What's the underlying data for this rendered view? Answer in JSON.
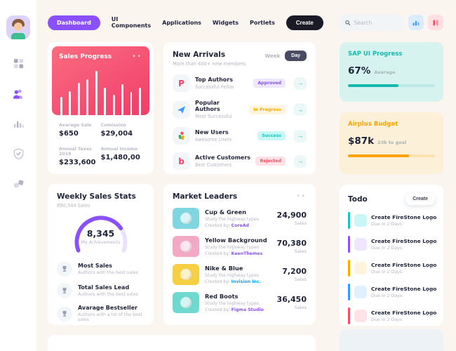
{
  "colors": {
    "purple": "#8950fc",
    "teal": "#1bc5bd",
    "orange": "#ffa800",
    "blue": "#3699ff",
    "red": "#f64e60",
    "dark": "#1b1b28",
    "page_bg": "#faf5ee",
    "sales_gradient_top": "#fb6c80",
    "sales_gradient_bottom": "#f1416c"
  },
  "sidebar": {
    "items": [
      {
        "icon": "user-avatar",
        "active": false
      },
      {
        "icon": "grid-icon",
        "active": false
      },
      {
        "icon": "users-icon",
        "active": true
      },
      {
        "icon": "bar-chart-icon",
        "active": false
      },
      {
        "icon": "shield-check-icon",
        "active": false
      },
      {
        "icon": "puzzle-icon",
        "active": false
      }
    ]
  },
  "nav": {
    "items": [
      "Dashboard",
      "UI Components",
      "Applications",
      "Widgets",
      "Portlets"
    ],
    "active": "Dashboard",
    "create_label": "Create"
  },
  "search": {
    "placeholder": "Search",
    "icons": [
      "search-icon",
      "chart-icon",
      "pause-icon"
    ]
  },
  "sales_progress": {
    "title": "Sales Progress",
    "bars": [
      38,
      50,
      68,
      75,
      92,
      58,
      42,
      64,
      48,
      58
    ],
    "stats": [
      {
        "label": "Avarage Sale",
        "value": "$650"
      },
      {
        "label": "Comission",
        "value": "$29,004"
      },
      {
        "label": "Annual Taxes 2019",
        "value": "$233,600"
      },
      {
        "label": "Annual Income",
        "value": "$1,480,00"
      }
    ]
  },
  "new_arrivals": {
    "title": "New Arrivals",
    "subtitle": "More than 400+ new members",
    "toggle": {
      "week": "Week",
      "day": "Day",
      "active": "Day"
    },
    "items": [
      {
        "icon": "p-logo-icon",
        "glyph": "P",
        "glyph_color": "#f1416c",
        "title": "Top Authors",
        "subtitle": "Successful Fellas",
        "badge": "Approved",
        "badge_bg": "#eee5ff",
        "badge_fg": "#8950fc"
      },
      {
        "icon": "paper-plane-icon",
        "glyph": "",
        "glyph_color": "#3699ff",
        "title": "Popular Authors",
        "subtitle": "Most Successful",
        "badge": "In Progress",
        "badge_bg": "#fff4de",
        "badge_fg": "#ffa800"
      },
      {
        "icon": "person-figure-icon",
        "glyph": "",
        "glyph_color": "#f64e60",
        "title": "New Users",
        "subtitle": "Awesome Users",
        "badge": "Success",
        "badge_bg": "#c9f7f5",
        "badge_fg": "#1bc5bd"
      },
      {
        "icon": "b-logo-icon",
        "glyph": "b",
        "glyph_color": "#f1416c",
        "title": "Active Customers",
        "subtitle": "Best Customers",
        "badge": "Rejected",
        "badge_bg": "#ffe2e5",
        "badge_fg": "#f64e60"
      }
    ],
    "arrow_glyph": "→"
  },
  "sap_progress": {
    "title": "SAP UI Progress",
    "value": "67%",
    "label": "Avarage",
    "percent": 58
  },
  "airplus_budget": {
    "title": "Airplus Budget",
    "value": "$87k",
    "label": "23k to goal",
    "percent": 70
  },
  "weekly_stats": {
    "title": "Weekly Sales Stats",
    "subtitle": "890,344 Sales",
    "gauge": {
      "value": "8,345",
      "label": "My Achievements",
      "percent": 75
    },
    "items": [
      {
        "icon": "trophy-icon",
        "title": "Most Sales",
        "subtitle": "Authors with the best sales"
      },
      {
        "icon": "trophy-icon",
        "title": "Total Sales Lead",
        "subtitle": "Authors with the best sales"
      },
      {
        "icon": "trophy-icon",
        "title": "Avarage Bestseller",
        "subtitle": "Authors with a lot of the best sales"
      }
    ]
  },
  "market_leaders": {
    "title": "Market Leaders",
    "created_prefix": "Created by:",
    "sales_label": "Sales",
    "items": [
      {
        "title": "Cup & Green",
        "subtitle": "Study the highway types",
        "author": "CoreAd",
        "author_color": "#8950fc",
        "sales": "24,900",
        "thumb_bg": "#7fd6e0"
      },
      {
        "title": "Yellow Background",
        "subtitle": "Study the highway types",
        "author": "KeenThemes",
        "author_color": "#8950fc",
        "sales": "70,380",
        "thumb_bg": "#f2a9c4"
      },
      {
        "title": "Nike & Blue",
        "subtitle": "Study the highway types",
        "author": "Invision Inc.",
        "author_color": "#00a3ff",
        "sales": "7,200",
        "thumb_bg": "#f6cf45"
      },
      {
        "title": "Red Boots",
        "subtitle": "Study the highway types",
        "author": "Figma Studio",
        "author_color": "#8950fc",
        "sales": "36,450",
        "thumb_bg": "#6fd8cf"
      }
    ]
  },
  "todo": {
    "title": "Todo",
    "create_label": "Create",
    "items": [
      {
        "title": "Create FireStone Logo",
        "due": "Due in 2 Days",
        "color": "#1bc5bd",
        "tint": "#c9f7f5"
      },
      {
        "title": "Create FireStone Logo",
        "due": "Due in 2 Days",
        "color": "#8950fc",
        "tint": "#eee5ff"
      },
      {
        "title": "Create FireStone Logo",
        "due": "Due in 2 Days",
        "color": "#ffa800",
        "tint": "#fff4de"
      },
      {
        "title": "Create FireStone Logo",
        "due": "Due in 2 Days",
        "color": "#3699ff",
        "tint": "#e1f0ff"
      },
      {
        "title": "Create FireStone Logo",
        "due": "Due in 2 Days",
        "color": "#f64e60",
        "tint": "#ffe2e5"
      }
    ]
  }
}
